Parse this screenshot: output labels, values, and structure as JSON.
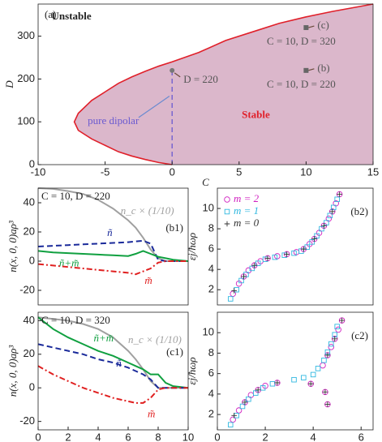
{
  "chart_data": [
    {
      "type": "phase",
      "panel": "(a)",
      "xlabel": "C",
      "ylabel": "D",
      "xlim": [
        -10,
        15
      ],
      "ylim": [
        0,
        375
      ],
      "xticks": [
        -10,
        -5,
        0,
        5,
        10,
        15
      ],
      "yticks": [
        0,
        100,
        200,
        300
      ],
      "boundary_color": "#e0202a",
      "fill_color": "#dbb7cb",
      "x": [
        0,
        -1,
        -2,
        -3,
        -4,
        -5,
        -6,
        -7,
        -7.3,
        -7,
        -6,
        -5,
        -4,
        -3,
        -2,
        -1,
        0,
        2,
        4,
        6,
        8,
        10,
        12,
        15
      ],
      "values": [
        0,
        5,
        12,
        20,
        30,
        45,
        60,
        80,
        100,
        120,
        150,
        170,
        190,
        205,
        218,
        230,
        240,
        262,
        290,
        310,
        330,
        345,
        358,
        375
      ],
      "regions": [
        "Unstable",
        "Stable"
      ],
      "dipolar_label": "pure dipolar",
      "points": [
        {
          "x": 0,
          "y": 220,
          "label": "D = 220"
        },
        {
          "x": 10,
          "y": 320,
          "label": "(c)",
          "caption": "C = 10, D = 320"
        },
        {
          "x": 10,
          "y": 220,
          "label": "(b)",
          "caption": "C = 10, D = 220"
        }
      ]
    },
    {
      "type": "line",
      "panel": "(b1)",
      "subtitle": "C = 10, D = 220",
      "ylabel": "n(x, 0, 0)aρ³",
      "xlim": [
        0,
        10
      ],
      "ylim": [
        -30,
        50
      ],
      "yticks": [
        -20,
        0,
        20,
        40
      ],
      "x": [
        0,
        1,
        2,
        3,
        4,
        5,
        6,
        6.5,
        7,
        7.5,
        8,
        8.5,
        9,
        10
      ],
      "series": [
        {
          "name": "n_c × (1/10)",
          "color": "#a0a0a0",
          "dash": "none",
          "values": [
            50,
            49.5,
            48,
            46,
            42,
            36,
            28,
            23,
            16,
            8,
            2,
            0,
            0,
            0
          ]
        },
        {
          "name": "ñ",
          "color": "#1a2a9a",
          "dash": "7 4",
          "values": [
            10,
            10.5,
            11,
            11.5,
            12,
            12.5,
            13,
            13.5,
            14,
            12,
            1,
            0,
            0,
            0
          ]
        },
        {
          "name": "ñ+m̃",
          "color": "#10a040",
          "dash": "none",
          "values": [
            7,
            6,
            5.5,
            5,
            4.5,
            4,
            3.5,
            5,
            7,
            5,
            3,
            2,
            1,
            0
          ]
        },
        {
          "name": "m̃",
          "color": "#e02020",
          "dash": "7 3 2 3",
          "values": [
            -2,
            -3,
            -4,
            -5,
            -6,
            -7,
            -8,
            -9,
            -7,
            -5,
            -1,
            0,
            0,
            0
          ]
        }
      ]
    },
    {
      "type": "scatter",
      "panel": "(b2)",
      "ylabel": "εj/ħωρ",
      "xlim": [
        0,
        6.5
      ],
      "ylim": [
        0.5,
        12
      ],
      "yticks": [
        2,
        4,
        6,
        8,
        10
      ],
      "series": [
        {
          "name": "m = 2",
          "color": "#d020c0",
          "marker": "circle",
          "x": [
            0.65,
            0.9,
            1.1,
            1.3,
            1.55,
            1.8,
            2.1,
            2.5,
            2.9,
            3.3,
            3.6,
            3.85,
            4.05,
            4.25,
            4.45,
            4.65,
            4.8,
            4.95,
            5.1
          ],
          "values": [
            1.6,
            2.6,
            3.3,
            3.9,
            4.4,
            4.8,
            5.1,
            5.3,
            5.5,
            5.7,
            6.0,
            6.5,
            7.0,
            7.6,
            8.3,
            9.0,
            9.7,
            10.5,
            11.4
          ]
        },
        {
          "name": "m = 1",
          "color": "#30b8e0",
          "marker": "square",
          "x": [
            0.55,
            0.8,
            1.0,
            1.2,
            1.45,
            1.7,
            2.0,
            2.4,
            2.8,
            3.2,
            3.5,
            3.75,
            3.95,
            4.15,
            4.35,
            4.55,
            4.7,
            4.85,
            5.0
          ],
          "values": [
            1.1,
            2.0,
            2.9,
            3.5,
            4.1,
            4.6,
            5.0,
            5.2,
            5.4,
            5.6,
            5.8,
            6.2,
            6.7,
            7.3,
            8.0,
            8.6,
            9.3,
            10.1,
            10.9
          ]
        },
        {
          "name": "m = 0",
          "color": "#333333",
          "marker": "plus",
          "x": [
            0.7,
            1.1,
            1.55,
            2.1,
            2.9,
            3.6,
            4.05,
            4.45,
            4.8,
            5.1
          ],
          "values": [
            1.9,
            3.3,
            4.4,
            5.1,
            5.5,
            6.0,
            7.0,
            8.3,
            9.7,
            11.4
          ]
        }
      ]
    },
    {
      "type": "line",
      "panel": "(c1)",
      "subtitle": "C = 10, D = 320",
      "ylabel": "n(x, 0, 0)aρ³",
      "xlabel": "x/aρ",
      "xlim": [
        0,
        10
      ],
      "ylim": [
        -25,
        45
      ],
      "xticks": [
        0,
        2,
        4,
        6,
        8,
        10
      ],
      "yticks": [
        -20,
        0,
        20,
        40
      ],
      "x": [
        0,
        1,
        2,
        3,
        4,
        5,
        6,
        6.5,
        7,
        7.5,
        8,
        8.5,
        9,
        10
      ],
      "series": [
        {
          "name": "n_c × (1/10)",
          "color": "#a0a0a0",
          "dash": "none",
          "values": [
            42,
            41,
            40,
            38,
            35,
            30,
            22,
            17,
            11,
            4,
            0,
            0,
            0,
            0
          ]
        },
        {
          "name": "ñ+m̃",
          "color": "#10a040",
          "dash": "none",
          "values": [
            42,
            35,
            30,
            26,
            22,
            19,
            15,
            13,
            11,
            8,
            8,
            3,
            1,
            0
          ]
        },
        {
          "name": "ñ",
          "color": "#1a2a9a",
          "dash": "7 4",
          "values": [
            26,
            24,
            22,
            20,
            17,
            15,
            12,
            10,
            8,
            5,
            0,
            0,
            0,
            0
          ]
        },
        {
          "name": "m̃",
          "color": "#e02020",
          "dash": "7 3 2 3",
          "values": [
            13,
            8,
            4,
            0,
            -3,
            -6,
            -8,
            -9,
            -9,
            -6,
            -1,
            0,
            0,
            0
          ]
        }
      ]
    },
    {
      "type": "scatter",
      "panel": "(c2)",
      "ylabel": "εj/ħωρ",
      "xlabel": "⟨kρ⟩aρ",
      "xlim": [
        0,
        6.5
      ],
      "ylim": [
        0.5,
        12
      ],
      "xticks": [
        0,
        2,
        4,
        6
      ],
      "yticks": [
        2,
        4,
        6,
        8,
        10
      ],
      "series": [
        {
          "name": "m = 2",
          "color": "#d020c0",
          "marker": "circle",
          "x": [
            0.65,
            0.9,
            1.15,
            1.4,
            1.7,
            2.0,
            2.5,
            3.9,
            4.5,
            4.6,
            4.4,
            4.6,
            4.75,
            4.9,
            5.05,
            5.2
          ],
          "values": [
            1.5,
            2.4,
            3.2,
            3.9,
            4.4,
            4.8,
            5.1,
            5.0,
            4.2,
            3.0,
            6.8,
            7.8,
            8.6,
            9.4,
            10.3,
            11.2
          ]
        },
        {
          "name": "m = 1",
          "color": "#30b8e0",
          "marker": "square",
          "x": [
            0.55,
            0.8,
            1.05,
            1.3,
            1.6,
            1.9,
            2.3,
            3.2,
            3.6,
            4.0,
            4.2,
            4.45,
            4.6,
            4.75,
            4.9,
            5.0
          ],
          "values": [
            1.0,
            1.9,
            2.8,
            3.5,
            4.1,
            4.6,
            5.0,
            5.4,
            5.6,
            5.9,
            6.5,
            7.3,
            8.1,
            8.9,
            9.8,
            10.6
          ]
        },
        {
          "name": "m = 0",
          "color": "#333333",
          "marker": "plus",
          "x": [
            0.7,
            1.15,
            1.7,
            2.5,
            3.9,
            4.5,
            4.6,
            4.6,
            4.9,
            5.2
          ],
          "values": [
            1.9,
            3.2,
            4.4,
            5.1,
            5.0,
            4.2,
            3.0,
            7.8,
            9.4,
            11.2
          ]
        }
      ]
    }
  ]
}
